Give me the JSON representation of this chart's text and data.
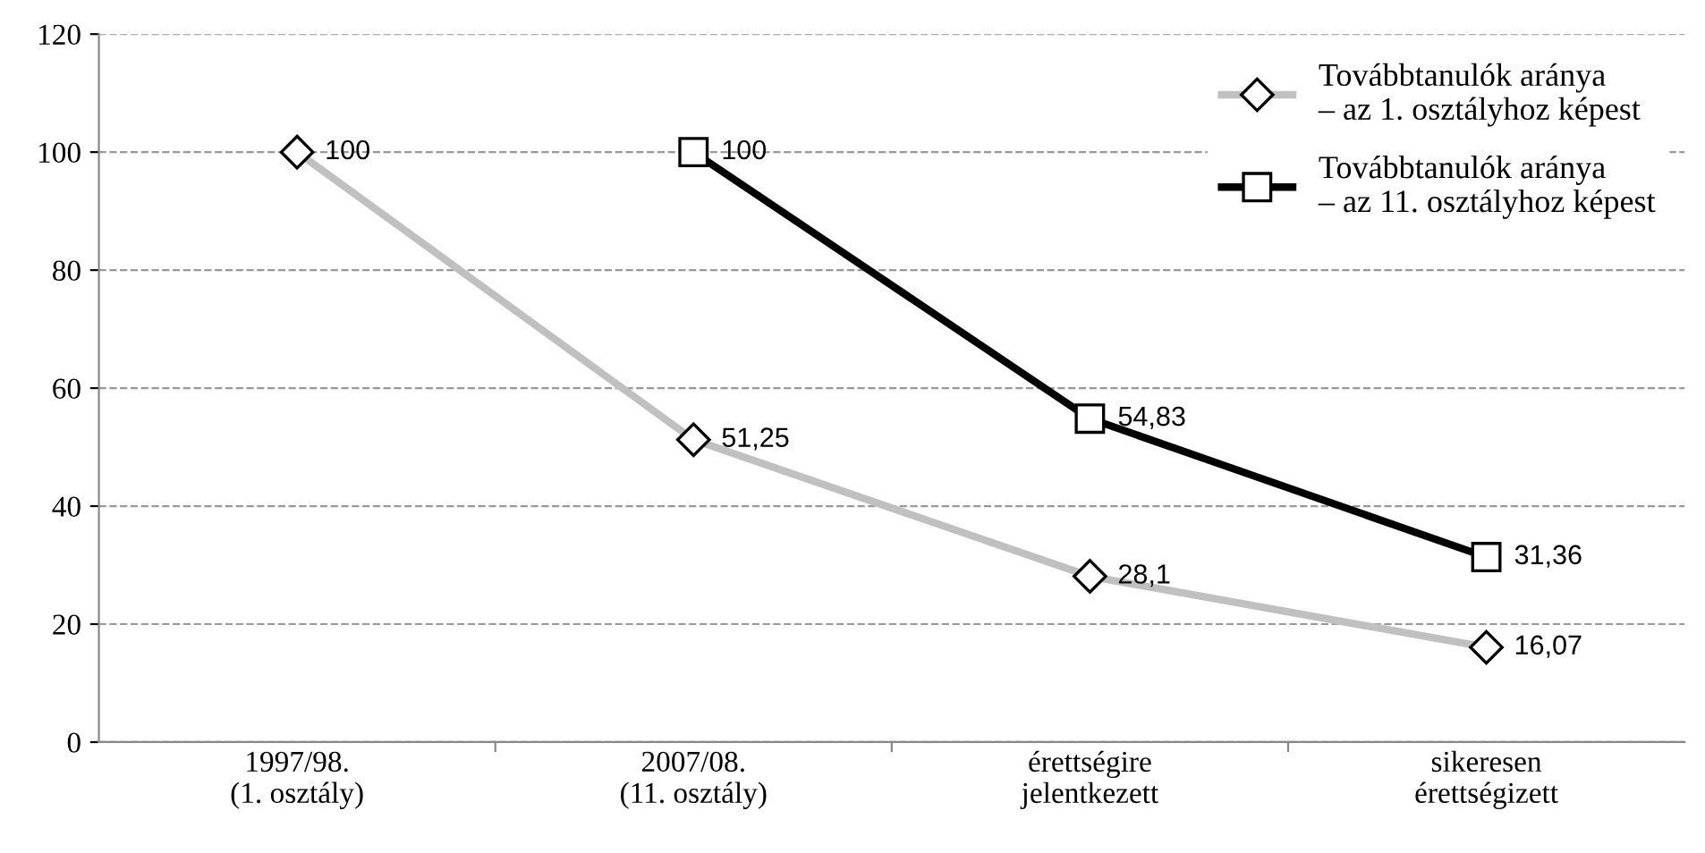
{
  "chart_data": {
    "type": "line",
    "categories": [
      "1997/98.\n(1. osztály)",
      "2007/08.\n(11. osztály)",
      "érettségire\njelentkezett",
      "sikeresen\nérettségizett"
    ],
    "series": [
      {
        "name": "Továbbtanulók aránya\n– az 1. osztályhoz képest",
        "color": "#c0c0c0",
        "marker": "diamond",
        "values": [
          100,
          51.25,
          28.1,
          16.07
        ],
        "value_labels": [
          "100",
          "51,25",
          "28,1",
          "16,07"
        ]
      },
      {
        "name": "Továbbtanulók aránya\n– az 11. osztályhoz képest",
        "color": "#000000",
        "marker": "square",
        "values": [
          null,
          100,
          54.83,
          31.36
        ],
        "value_labels": [
          null,
          "100",
          "54,83",
          "31,36"
        ]
      }
    ],
    "ylim": [
      0,
      120
    ],
    "yticks": [
      0,
      20,
      40,
      60,
      80,
      100,
      120
    ],
    "grid": "y",
    "legend": "top right",
    "line_style": "solid"
  }
}
